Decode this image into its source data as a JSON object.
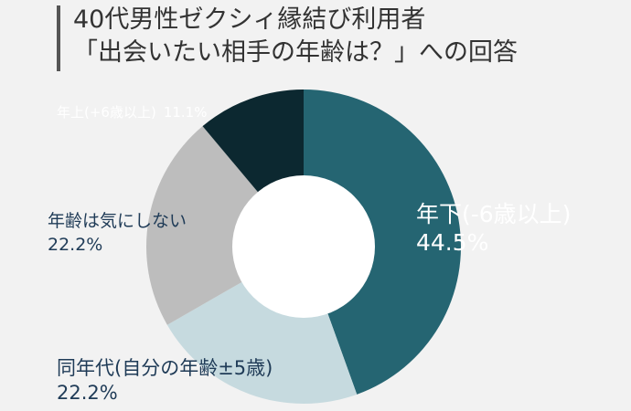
{
  "title_lines": [
    "40代男性ゼクシィ縁結び利用者",
    "「出会いたい相手の年齢は？」への回答"
  ],
  "chart_data": {
    "type": "pie",
    "hole": true,
    "slices": [
      {
        "label": "年下(-6歳以上)",
        "value": 44.5,
        "value_label": "44.5%",
        "color": "#256572",
        "text_color": "#ffffff"
      },
      {
        "label": "同年代(自分の年齢±5歳)",
        "value": 22.2,
        "value_label": "22.2%",
        "color": "#c6dadf",
        "text_color": "#1f3b57"
      },
      {
        "label": "年齢は気にしない",
        "value": 22.2,
        "value_label": "22.2%",
        "color": "#bdbdbd",
        "text_color": "#1f3b57"
      },
      {
        "label": "年上(+6歳以上)",
        "value": 11.1,
        "value_label": "11.1%",
        "color": "#0c2830",
        "text_color": "#ffffff"
      }
    ]
  }
}
